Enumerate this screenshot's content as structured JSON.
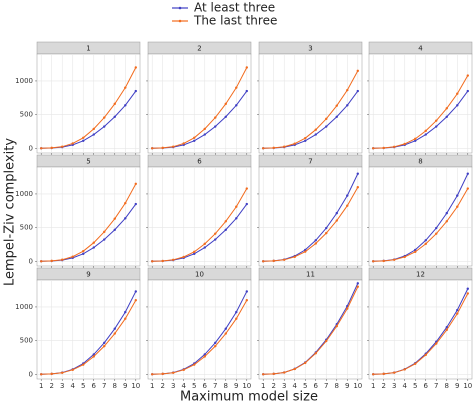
{
  "chart_data": [
    {
      "type": "line",
      "title": "1",
      "xlabel": "Maximum model size",
      "ylabel": "Lempel-Ziv complexity",
      "legend": "top",
      "grid": true,
      "x": [
        1,
        2,
        3,
        4,
        5,
        6,
        7,
        8,
        9,
        10
      ],
      "xlim": [
        0.6,
        10.4
      ],
      "xticks": [
        1,
        2,
        3,
        4,
        5,
        6,
        7,
        8,
        9,
        10
      ],
      "ylim": [
        -70,
        1400
      ],
      "yticks": [
        0,
        500,
        1000
      ],
      "series": [
        {
          "name": "At least three",
          "color": "#3f3fc4",
          "values": [
            0,
            4,
            17,
            51,
            111,
            204,
            323,
            468,
            638,
            850
          ]
        },
        {
          "name": "The last three",
          "color": "#f26b1d",
          "values": [
            0,
            6,
            24,
            72,
            156,
            288,
            456,
            660,
            900,
            1200
          ]
        }
      ]
    },
    {
      "type": "line",
      "title": "2",
      "grid": true,
      "x": [
        1,
        2,
        3,
        4,
        5,
        6,
        7,
        8,
        9,
        10
      ],
      "xlim": [
        0.6,
        10.4
      ],
      "xticks": [
        1,
        2,
        3,
        4,
        5,
        6,
        7,
        8,
        9,
        10
      ],
      "ylim": [
        -70,
        1400
      ],
      "yticks": [
        0,
        500,
        1000
      ],
      "series": [
        {
          "name": "At least three",
          "color": "#3f3fc4",
          "values": [
            0,
            4,
            17,
            51,
            111,
            204,
            323,
            468,
            638,
            850
          ]
        },
        {
          "name": "The last three",
          "color": "#f26b1d",
          "values": [
            0,
            6,
            24,
            72,
            156,
            288,
            456,
            660,
            900,
            1200
          ]
        }
      ]
    },
    {
      "type": "line",
      "title": "3",
      "grid": true,
      "x": [
        1,
        2,
        3,
        4,
        5,
        6,
        7,
        8,
        9,
        10
      ],
      "xlim": [
        0.6,
        10.4
      ],
      "xticks": [
        1,
        2,
        3,
        4,
        5,
        6,
        7,
        8,
        9,
        10
      ],
      "ylim": [
        -70,
        1400
      ],
      "yticks": [
        0,
        500,
        1000
      ],
      "series": [
        {
          "name": "At least three",
          "color": "#3f3fc4",
          "values": [
            0,
            4,
            17,
            51,
            111,
            204,
            323,
            468,
            638,
            850
          ]
        },
        {
          "name": "The last three",
          "color": "#f26b1d",
          "values": [
            0,
            6,
            23,
            69,
            150,
            276,
            437,
            633,
            863,
            1150
          ]
        }
      ]
    },
    {
      "type": "line",
      "title": "4",
      "grid": true,
      "x": [
        1,
        2,
        3,
        4,
        5,
        6,
        7,
        8,
        9,
        10
      ],
      "xlim": [
        0.6,
        10.4
      ],
      "xticks": [
        1,
        2,
        3,
        4,
        5,
        6,
        7,
        8,
        9,
        10
      ],
      "ylim": [
        -70,
        1400
      ],
      "yticks": [
        0,
        500,
        1000
      ],
      "series": [
        {
          "name": "At least three",
          "color": "#3f3fc4",
          "values": [
            0,
            4,
            17,
            51,
            111,
            204,
            323,
            468,
            638,
            850
          ]
        },
        {
          "name": "The last three",
          "color": "#f26b1d",
          "values": [
            0,
            5,
            22,
            65,
            140,
            259,
            410,
            594,
            810,
            1080
          ]
        }
      ]
    },
    {
      "type": "line",
      "title": "5",
      "grid": true,
      "x": [
        1,
        2,
        3,
        4,
        5,
        6,
        7,
        8,
        9,
        10
      ],
      "xlim": [
        0.6,
        10.4
      ],
      "xticks": [
        1,
        2,
        3,
        4,
        5,
        6,
        7,
        8,
        9,
        10
      ],
      "ylim": [
        -70,
        1400
      ],
      "yticks": [
        0,
        500,
        1000
      ],
      "series": [
        {
          "name": "At least three",
          "color": "#3f3fc4",
          "values": [
            0,
            4,
            17,
            51,
            111,
            204,
            323,
            468,
            638,
            850
          ]
        },
        {
          "name": "The last three",
          "color": "#f26b1d",
          "values": [
            0,
            6,
            23,
            69,
            150,
            276,
            437,
            633,
            863,
            1150
          ]
        }
      ]
    },
    {
      "type": "line",
      "title": "6",
      "grid": true,
      "x": [
        1,
        2,
        3,
        4,
        5,
        6,
        7,
        8,
        9,
        10
      ],
      "xlim": [
        0.6,
        10.4
      ],
      "xticks": [
        1,
        2,
        3,
        4,
        5,
        6,
        7,
        8,
        9,
        10
      ],
      "ylim": [
        -70,
        1400
      ],
      "yticks": [
        0,
        500,
        1000
      ],
      "series": [
        {
          "name": "At least three",
          "color": "#3f3fc4",
          "values": [
            0,
            4,
            17,
            51,
            111,
            204,
            323,
            468,
            638,
            850
          ]
        },
        {
          "name": "The last three",
          "color": "#f26b1d",
          "values": [
            0,
            5,
            22,
            65,
            140,
            259,
            410,
            594,
            810,
            1080
          ]
        }
      ]
    },
    {
      "type": "line",
      "title": "7",
      "grid": true,
      "x": [
        1,
        2,
        3,
        4,
        5,
        6,
        7,
        8,
        9,
        10
      ],
      "xlim": [
        0.6,
        10.4
      ],
      "xticks": [
        1,
        2,
        3,
        4,
        5,
        6,
        7,
        8,
        9,
        10
      ],
      "ylim": [
        -70,
        1400
      ],
      "yticks": [
        0,
        500,
        1000
      ],
      "series": [
        {
          "name": "At least three",
          "color": "#3f3fc4",
          "values": [
            0,
            7,
            26,
            78,
            169,
            312,
            494,
            715,
            975,
            1300
          ]
        },
        {
          "name": "The last three",
          "color": "#f26b1d",
          "values": [
            0,
            6,
            22,
            66,
            143,
            264,
            418,
            605,
            825,
            1100
          ]
        }
      ]
    },
    {
      "type": "line",
      "title": "8",
      "grid": true,
      "x": [
        1,
        2,
        3,
        4,
        5,
        6,
        7,
        8,
        9,
        10
      ],
      "xlim": [
        0.6,
        10.4
      ],
      "xticks": [
        1,
        2,
        3,
        4,
        5,
        6,
        7,
        8,
        9,
        10
      ],
      "ylim": [
        -70,
        1400
      ],
      "yticks": [
        0,
        500,
        1000
      ],
      "series": [
        {
          "name": "At least three",
          "color": "#3f3fc4",
          "values": [
            0,
            7,
            26,
            78,
            169,
            312,
            494,
            715,
            975,
            1300
          ]
        },
        {
          "name": "The last three",
          "color": "#f26b1d",
          "values": [
            0,
            5,
            22,
            65,
            140,
            259,
            410,
            594,
            810,
            1080
          ]
        }
      ]
    },
    {
      "type": "line",
      "title": "9",
      "grid": true,
      "x": [
        1,
        2,
        3,
        4,
        5,
        6,
        7,
        8,
        9,
        10
      ],
      "xlim": [
        0.6,
        10.4
      ],
      "xticks": [
        1,
        2,
        3,
        4,
        5,
        6,
        7,
        8,
        9,
        10
      ],
      "ylim": [
        -70,
        1400
      ],
      "yticks": [
        0,
        500,
        1000
      ],
      "series": [
        {
          "name": "At least three",
          "color": "#3f3fc4",
          "values": [
            0,
            6,
            25,
            74,
            160,
            295,
            467,
            677,
            923,
            1230
          ]
        },
        {
          "name": "The last three",
          "color": "#f26b1d",
          "values": [
            0,
            6,
            22,
            66,
            143,
            264,
            418,
            605,
            825,
            1100
          ]
        }
      ]
    },
    {
      "type": "line",
      "title": "10",
      "grid": true,
      "x": [
        1,
        2,
        3,
        4,
        5,
        6,
        7,
        8,
        9,
        10
      ],
      "xlim": [
        0.6,
        10.4
      ],
      "xticks": [
        1,
        2,
        3,
        4,
        5,
        6,
        7,
        8,
        9,
        10
      ],
      "ylim": [
        -70,
        1400
      ],
      "yticks": [
        0,
        500,
        1000
      ],
      "series": [
        {
          "name": "At least three",
          "color": "#3f3fc4",
          "values": [
            0,
            6,
            25,
            74,
            160,
            295,
            467,
            677,
            923,
            1230
          ]
        },
        {
          "name": "The last three",
          "color": "#f26b1d",
          "values": [
            0,
            6,
            22,
            66,
            143,
            264,
            418,
            605,
            825,
            1100
          ]
        }
      ]
    },
    {
      "type": "line",
      "title": "11",
      "grid": true,
      "x": [
        1,
        2,
        3,
        4,
        5,
        6,
        7,
        8,
        9,
        10
      ],
      "xlim": [
        0.6,
        10.4
      ],
      "xticks": [
        1,
        2,
        3,
        4,
        5,
        6,
        7,
        8,
        9,
        10
      ],
      "ylim": [
        -70,
        1400
      ],
      "yticks": [
        0,
        500,
        1000
      ],
      "series": [
        {
          "name": "At least three",
          "color": "#3f3fc4",
          "values": [
            0,
            7,
            27,
            81,
            176,
            324,
            513,
            743,
            1013,
            1350
          ]
        },
        {
          "name": "The last three",
          "color": "#f26b1d",
          "values": [
            0,
            7,
            26,
            78,
            169,
            312,
            494,
            715,
            975,
            1300
          ]
        }
      ]
    },
    {
      "type": "line",
      "title": "12",
      "grid": true,
      "x": [
        1,
        2,
        3,
        4,
        5,
        6,
        7,
        8,
        9,
        10
      ],
      "xlim": [
        0.6,
        10.4
      ],
      "xticks": [
        1,
        2,
        3,
        4,
        5,
        6,
        7,
        8,
        9,
        10
      ],
      "ylim": [
        -70,
        1400
      ],
      "yticks": [
        0,
        500,
        1000
      ],
      "series": [
        {
          "name": "At least three",
          "color": "#3f3fc4",
          "values": [
            0,
            6,
            25,
            76,
            165,
            305,
            483,
            699,
            953,
            1270
          ]
        },
        {
          "name": "The last three",
          "color": "#f26b1d",
          "values": [
            0,
            6,
            24,
            72,
            156,
            288,
            456,
            660,
            900,
            1200
          ]
        }
      ]
    }
  ]
}
